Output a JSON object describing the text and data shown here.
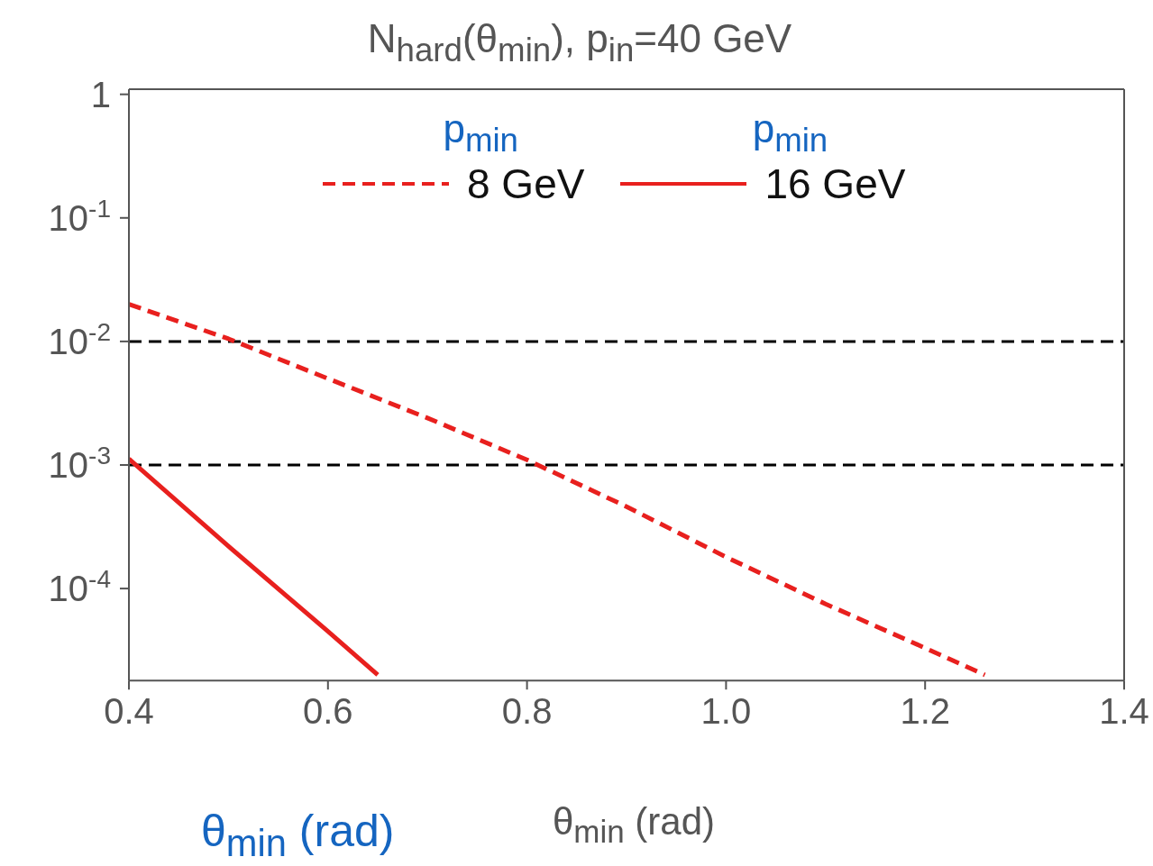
{
  "chart_data": {
    "type": "line",
    "title": "N$_{hard}$(θ$_{min}$), p$_{in}$=40 GeV",
    "xlabel": "θ$_{min}$ (rad)",
    "annotations": [
      "p$_{min}$",
      "p$_{min}$",
      "θ$_{min}$ (rad)"
    ],
    "series": [
      {
        "name": "8 GeV",
        "color": "#e8201e",
        "line_style": "dashed",
        "x": [
          0.4,
          0.5,
          0.6,
          0.7,
          0.8,
          0.9,
          1.0,
          1.1,
          1.2,
          1.26
        ],
        "values": [
          0.02,
          0.0105,
          0.005,
          0.0024,
          0.0011,
          0.00046,
          0.00018,
          7.5e-05,
          3.3e-05,
          2e-05
        ]
      },
      {
        "name": "16 GeV",
        "color": "#e8201e",
        "line_style": "solid",
        "x": [
          0.4,
          0.5,
          0.6,
          0.65
        ],
        "values": [
          0.00112,
          0.00022,
          4.5e-05,
          2e-05
        ]
      }
    ],
    "log": "y",
    "xlim": [
      0.4,
      1.4
    ],
    "xticks": [
      0.4,
      0.6,
      0.8,
      {
        "value": 1.0,
        "label": "1.0"
      },
      1.2,
      1.4
    ],
    "ylim": [
      1.8e-05,
      1.1
    ],
    "yticks": [
      1,
      {
        "value": 0.1,
        "label": "10$^{-1}$"
      },
      {
        "value": 0.01,
        "label": "10$^{-2}$"
      },
      {
        "value": 0.001,
        "label": "10$^{-3}$"
      },
      {
        "value": 0.0001,
        "label": "10$^{-4}$"
      }
    ],
    "ref_lines": [
      {
        "axis": "y",
        "value": 0.01,
        "color": "#000000",
        "line_style": "dashed"
      },
      {
        "axis": "y",
        "value": 0.001,
        "color": "#000000",
        "line_style": "dashed"
      }
    ],
    "legend": "top",
    "marker": "none"
  }
}
